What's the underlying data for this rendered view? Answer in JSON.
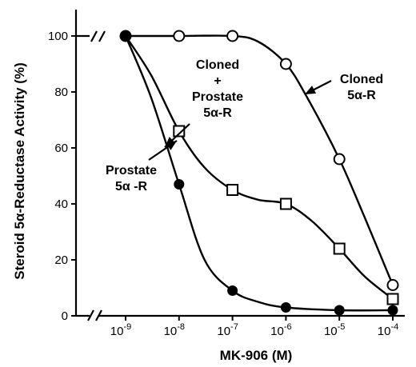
{
  "chart_data": {
    "type": "line",
    "x_scale": "log",
    "x": [
      1e-09,
      1e-08,
      1e-07,
      1e-06,
      1e-05,
      0.0001
    ],
    "xlim": [
      1e-10,
      0.0001
    ],
    "ylim": [
      0,
      100
    ],
    "xlabel": "MK-906 (M)",
    "ylabel": "Steroid 5α-Reductase Activity (%)",
    "x_tick_labels": [
      {
        "x": 1e-09,
        "base": "10",
        "exp": "-9"
      },
      {
        "x": 1e-08,
        "base": "10",
        "exp": "-8"
      },
      {
        "x": 1e-07,
        "base": "10",
        "exp": "-7"
      },
      {
        "x": 1e-06,
        "base": "10",
        "exp": "-6"
      },
      {
        "x": 1e-05,
        "base": "10",
        "exp": "-5"
      },
      {
        "x": 0.0001,
        "base": "10",
        "exp": "-4"
      }
    ],
    "y_ticks": [
      0,
      20,
      40,
      60,
      80,
      100
    ],
    "y_tick_labels": [
      "0",
      "20",
      "40",
      "60",
      "80",
      "100"
    ],
    "axis_breaks": true,
    "grid": false,
    "series": [
      {
        "name": "Cloned 5α-R",
        "marker": "open-circle",
        "points": [
          [
            1e-09,
            100
          ],
          [
            1e-08,
            100
          ],
          [
            1e-07,
            100
          ],
          [
            1e-06,
            90
          ],
          [
            1e-05,
            56
          ],
          [
            0.0001,
            11
          ]
        ]
      },
      {
        "name": "Cloned + Prostate 5α-R",
        "marker": "open-square",
        "points": [
          [
            1e-08,
            66
          ],
          [
            1e-07,
            45
          ],
          [
            1e-06,
            40
          ],
          [
            1e-05,
            24
          ],
          [
            0.0001,
            6
          ]
        ]
      },
      {
        "name": "Prostate 5α-R",
        "marker": "filled-circle",
        "points": [
          [
            1e-09,
            100
          ],
          [
            1e-08,
            47
          ],
          [
            1e-07,
            9
          ],
          [
            1e-06,
            3
          ],
          [
            1e-05,
            2
          ],
          [
            0.0001,
            2
          ]
        ]
      }
    ],
    "curves": [
      {
        "series": "Cloned 5α-R",
        "path": [
          [
            1e-09,
            100
          ],
          [
            1e-08,
            100
          ],
          [
            1e-07,
            100
          ],
          [
            3e-07,
            98
          ],
          [
            1e-06,
            90
          ],
          [
            2.5e-06,
            78
          ],
          [
            1e-05,
            56
          ],
          [
            3e-05,
            35
          ],
          [
            0.0001,
            11
          ]
        ]
      },
      {
        "series": "Cloned + Prostate 5α-R",
        "path": [
          [
            1e-09,
            100
          ],
          [
            3e-09,
            86
          ],
          [
            1e-08,
            66
          ],
          [
            3e-08,
            53
          ],
          [
            1e-07,
            45
          ],
          [
            3e-07,
            41.5
          ],
          [
            1e-06,
            40
          ],
          [
            3e-06,
            34
          ],
          [
            1e-05,
            24
          ],
          [
            3e-05,
            14
          ],
          [
            0.0001,
            6
          ]
        ]
      },
      {
        "series": "Prostate 5α-R",
        "path": [
          [
            1e-09,
            100
          ],
          [
            3e-09,
            78
          ],
          [
            1e-08,
            47
          ],
          [
            3e-08,
            20
          ],
          [
            1e-07,
            9
          ],
          [
            3e-07,
            5
          ],
          [
            1e-06,
            3
          ],
          [
            1e-05,
            2
          ],
          [
            0.0001,
            2
          ]
        ]
      }
    ],
    "annotations": [
      {
        "lines": [
          "Cloned",
          "5α-R"
        ],
        "series": "Cloned 5α-R"
      },
      {
        "lines": [
          "Cloned",
          "+",
          "Prostate",
          "5α-R"
        ],
        "series": "Cloned + Prostate 5α-R"
      },
      {
        "lines": [
          "Prostate",
          "5α -R"
        ],
        "series": "Prostate 5α-R"
      }
    ]
  }
}
